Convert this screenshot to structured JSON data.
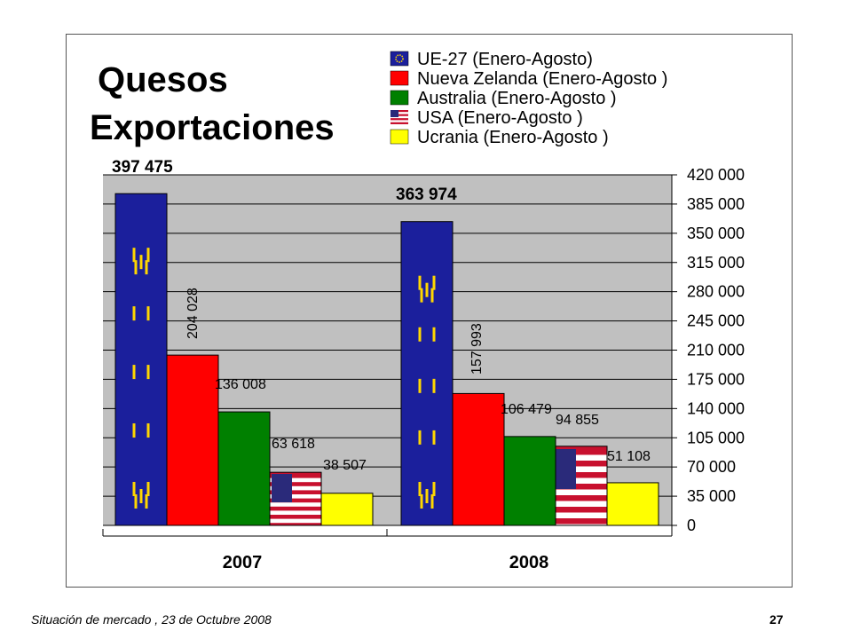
{
  "slide": {
    "title_line1": "Quesos",
    "title_line2": "Exportaciones",
    "footer_text": "Situación de mercado , 23 de  Octubre 2008",
    "page_number": "27"
  },
  "chart_data": {
    "type": "bar",
    "categories": [
      "2007",
      "2008"
    ],
    "series": [
      {
        "name": "UE-27 (Enero-Agosto)",
        "values": [
          397475,
          363974
        ],
        "labels": [
          "397 475",
          "363 974"
        ],
        "color": "#1b1f9c",
        "pattern": "eu-flag"
      },
      {
        "name": "Nueva Zelanda (Enero-Agosto )",
        "values": [
          204028,
          157993
        ],
        "labels": [
          "204 028",
          "157 993"
        ],
        "color": "#ff0000"
      },
      {
        "name": "Australia (Enero-Agosto )",
        "values": [
          136008,
          106479
        ],
        "labels": [
          "136 008",
          "106 479"
        ],
        "color": "#008000"
      },
      {
        "name": "USA (Enero-Agosto )",
        "values": [
          63618,
          94855
        ],
        "labels": [
          "63 618",
          "94 855"
        ],
        "color": "#c8102e",
        "pattern": "us-flag"
      },
      {
        "name": "Ucrania (Enero-Agosto )",
        "values": [
          38507,
          51108
        ],
        "labels": [
          "38 507",
          "51 108"
        ],
        "color": "#ffff00"
      }
    ],
    "y_ticks": [
      "0",
      "35 000",
      "70 000",
      "105 000",
      "140 000",
      "175 000",
      "210 000",
      "245 000",
      "280 000",
      "315 000",
      "350 000",
      "385 000",
      "420 000"
    ],
    "ylim": [
      0,
      420000
    ],
    "y_axis_side": "right",
    "grid": true,
    "plot_background": "#c0c0c0",
    "legend_position": "top-right"
  }
}
